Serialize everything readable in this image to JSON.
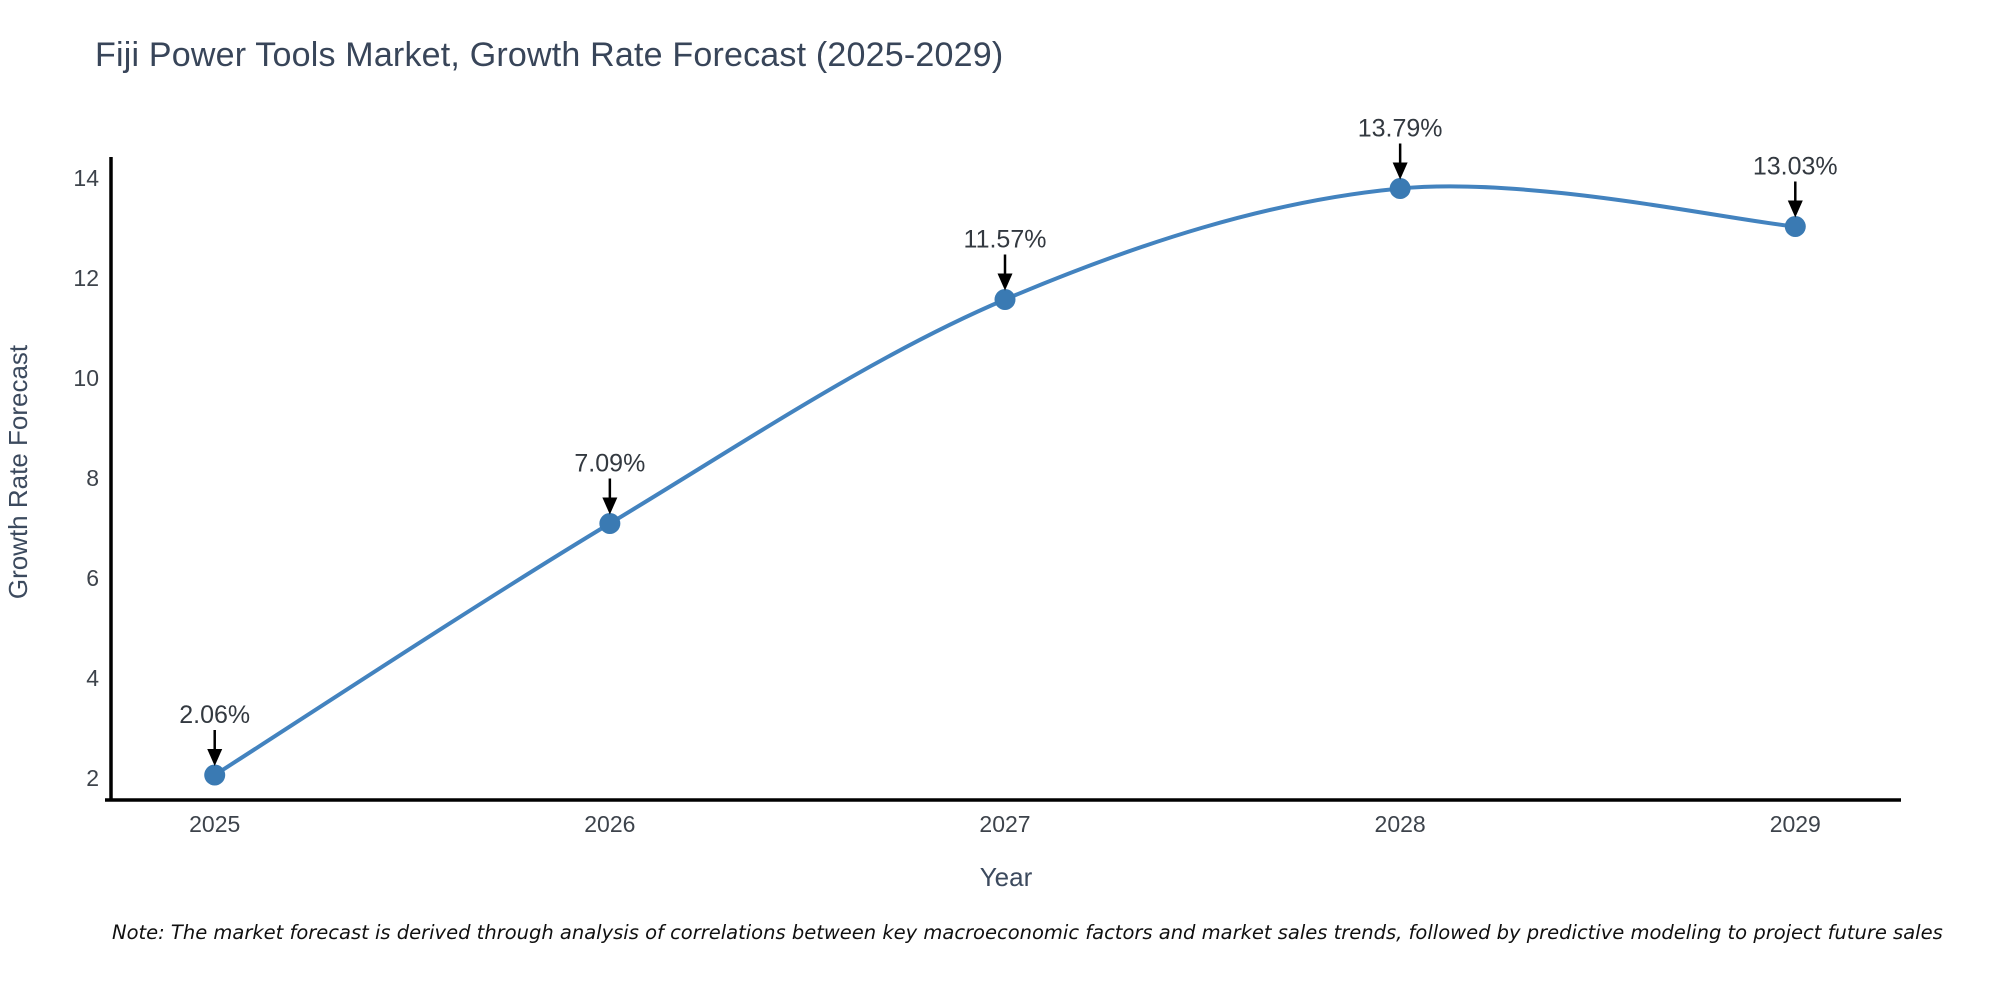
{
  "title": "Fiji Power Tools Market, Growth Rate Forecast (2025-2029)",
  "note": "Note: The market forecast is derived through analysis of correlations between key macroeconomic factors and market sales trends, followed by predictive modeling to project future sales",
  "chart_data": {
    "type": "line",
    "title": "Fiji Power Tools Market, Growth Rate Forecast (2025-2029)",
    "xlabel": "Year",
    "ylabel": "Growth Rate Forecast",
    "x": [
      2025,
      2026,
      2027,
      2028,
      2029
    ],
    "values": [
      2.06,
      7.09,
      11.57,
      13.79,
      13.03
    ],
    "point_labels": [
      "2.06%",
      "7.09%",
      "11.57%",
      "13.79%",
      "13.03%"
    ],
    "xticks": [
      "2025",
      "2026",
      "2027",
      "2028",
      "2029"
    ],
    "yticks": [
      2,
      4,
      6,
      8,
      10,
      12,
      14
    ],
    "xlim": [
      2024.735,
      2029.265
    ],
    "ylim": [
      1.56,
      14.4
    ],
    "grid": false,
    "legend": "none",
    "line_shape": "spline",
    "annotation_arrows": "black-down-arrows",
    "colors": {
      "line": "#4383bf",
      "marker": "#3a7ab3",
      "axis": "#000000",
      "arrow": "#000000",
      "title": "#384559",
      "tick_label": "#3d434b",
      "annotation_text": "#333940",
      "background": "#ffffff"
    }
  }
}
